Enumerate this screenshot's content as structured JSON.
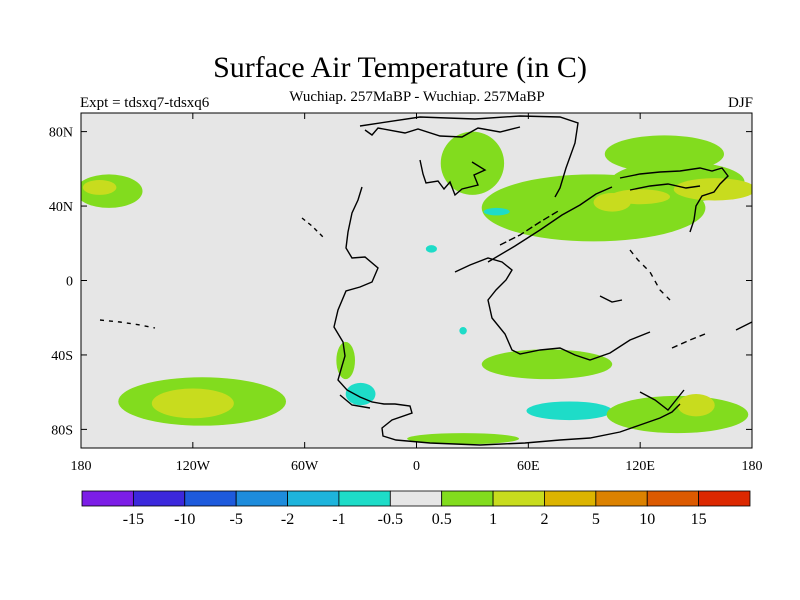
{
  "chart_data": {
    "type": "map_contour",
    "title": "Surface Air Temperature (in C)",
    "subtitle": "Wuchiap. 257MaBP - Wuchiap. 257MaBP",
    "left_label": "Expt = tdsxq7-tdsxq6",
    "right_label": "DJF",
    "x_ticks": [
      "180",
      "120W",
      "60W",
      "0",
      "60E",
      "120E",
      "180"
    ],
    "x_range": [
      -180,
      180
    ],
    "y_ticks": [
      "80N",
      "40N",
      "0",
      "40S",
      "80S"
    ],
    "y_tick_values": [
      80,
      40,
      0,
      -40,
      -80
    ],
    "y_range": [
      -90,
      90
    ],
    "colorbar": {
      "labels": [
        "-15",
        "-10",
        "-5",
        "-2",
        "-1",
        "-0.5",
        "0.5",
        "1",
        "2",
        "5",
        "10",
        "15"
      ],
      "colors": [
        "#7c1ee6",
        "#3c28dc",
        "#1e5adc",
        "#1e8cdc",
        "#1eb4dc",
        "#1edcc8",
        "#e6e6e6",
        "#82dc1e",
        "#c8dc1e",
        "#dcb400",
        "#dc8200",
        "#dc5a00",
        "#dc2800"
      ]
    },
    "regions": [
      {
        "level": "0.5 to 1",
        "color": "#82dc1e",
        "lon": -165,
        "lat": 48,
        "rx": 18,
        "ry": 9
      },
      {
        "level": "1 to 2",
        "color": "#c8dc1e",
        "lon": -170,
        "lat": 50,
        "rx": 9,
        "ry": 4
      },
      {
        "level": "0.5 to 1",
        "color": "#82dc1e",
        "lon": -115,
        "lat": -65,
        "rx": 45,
        "ry": 13
      },
      {
        "level": "1 to 2",
        "color": "#c8dc1e",
        "lon": -120,
        "lat": -66,
        "rx": 22,
        "ry": 8
      },
      {
        "level": "0.5 to 1",
        "color": "#82dc1e",
        "lon": -38,
        "lat": -43,
        "rx": 5,
        "ry": 10
      },
      {
        "level": "-1 to -0.5",
        "color": "#1edcc8",
        "lon": -30,
        "lat": -61,
        "rx": 8,
        "ry": 6
      },
      {
        "level": "-1 to -0.5",
        "color": "#1edcc8",
        "lon": 82,
        "lat": -70,
        "rx": 23,
        "ry": 5
      },
      {
        "level": "0.5 to 1",
        "color": "#82dc1e",
        "lon": 30,
        "lat": 63,
        "rx": 17,
        "ry": 17
      },
      {
        "level": "0.5 to 1",
        "color": "#82dc1e",
        "lon": 95,
        "lat": 39,
        "rx": 60,
        "ry": 18
      },
      {
        "level": "0.5 to 1",
        "color": "#82dc1e",
        "lon": 133,
        "lat": 68,
        "rx": 32,
        "ry": 10
      },
      {
        "level": "0.5 to 1",
        "color": "#82dc1e",
        "lon": 140,
        "lat": 53,
        "rx": 36,
        "ry": 11
      },
      {
        "level": "1 to 2",
        "color": "#c8dc1e",
        "lon": 160,
        "lat": 49,
        "rx": 22,
        "ry": 6
      },
      {
        "level": "1 to 2",
        "color": "#c8dc1e",
        "lon": 105,
        "lat": 42,
        "rx": 10,
        "ry": 5
      },
      {
        "level": "1 to 2",
        "color": "#c8dc1e",
        "lon": 120,
        "lat": 45,
        "rx": 16,
        "ry": 4
      },
      {
        "level": "0.5 to 1",
        "color": "#82dc1e",
        "lon": 70,
        "lat": -45,
        "rx": 35,
        "ry": 8
      },
      {
        "level": "0.5 to 1",
        "color": "#82dc1e",
        "lon": 140,
        "lat": -72,
        "rx": 38,
        "ry": 10
      },
      {
        "level": "1 to 2",
        "color": "#c8dc1e",
        "lon": 150,
        "lat": -67,
        "rx": 10,
        "ry": 6
      },
      {
        "level": "0.5 to 1",
        "color": "#82dc1e",
        "lon": 25,
        "lat": -85,
        "rx": 30,
        "ry": 3
      },
      {
        "level": "-1 to -0.5",
        "color": "#1edcc8",
        "lon": 43,
        "lat": 37,
        "rx": 7,
        "ry": 2
      },
      {
        "level": "-1 to -0.5",
        "color": "#1edcc8",
        "lon": 8,
        "lat": 17,
        "rx": 3,
        "ry": 2
      },
      {
        "level": "-1 to -0.5",
        "color": "#1edcc8",
        "lon": 25,
        "lat": -27,
        "rx": 2,
        "ry": 2
      }
    ]
  }
}
